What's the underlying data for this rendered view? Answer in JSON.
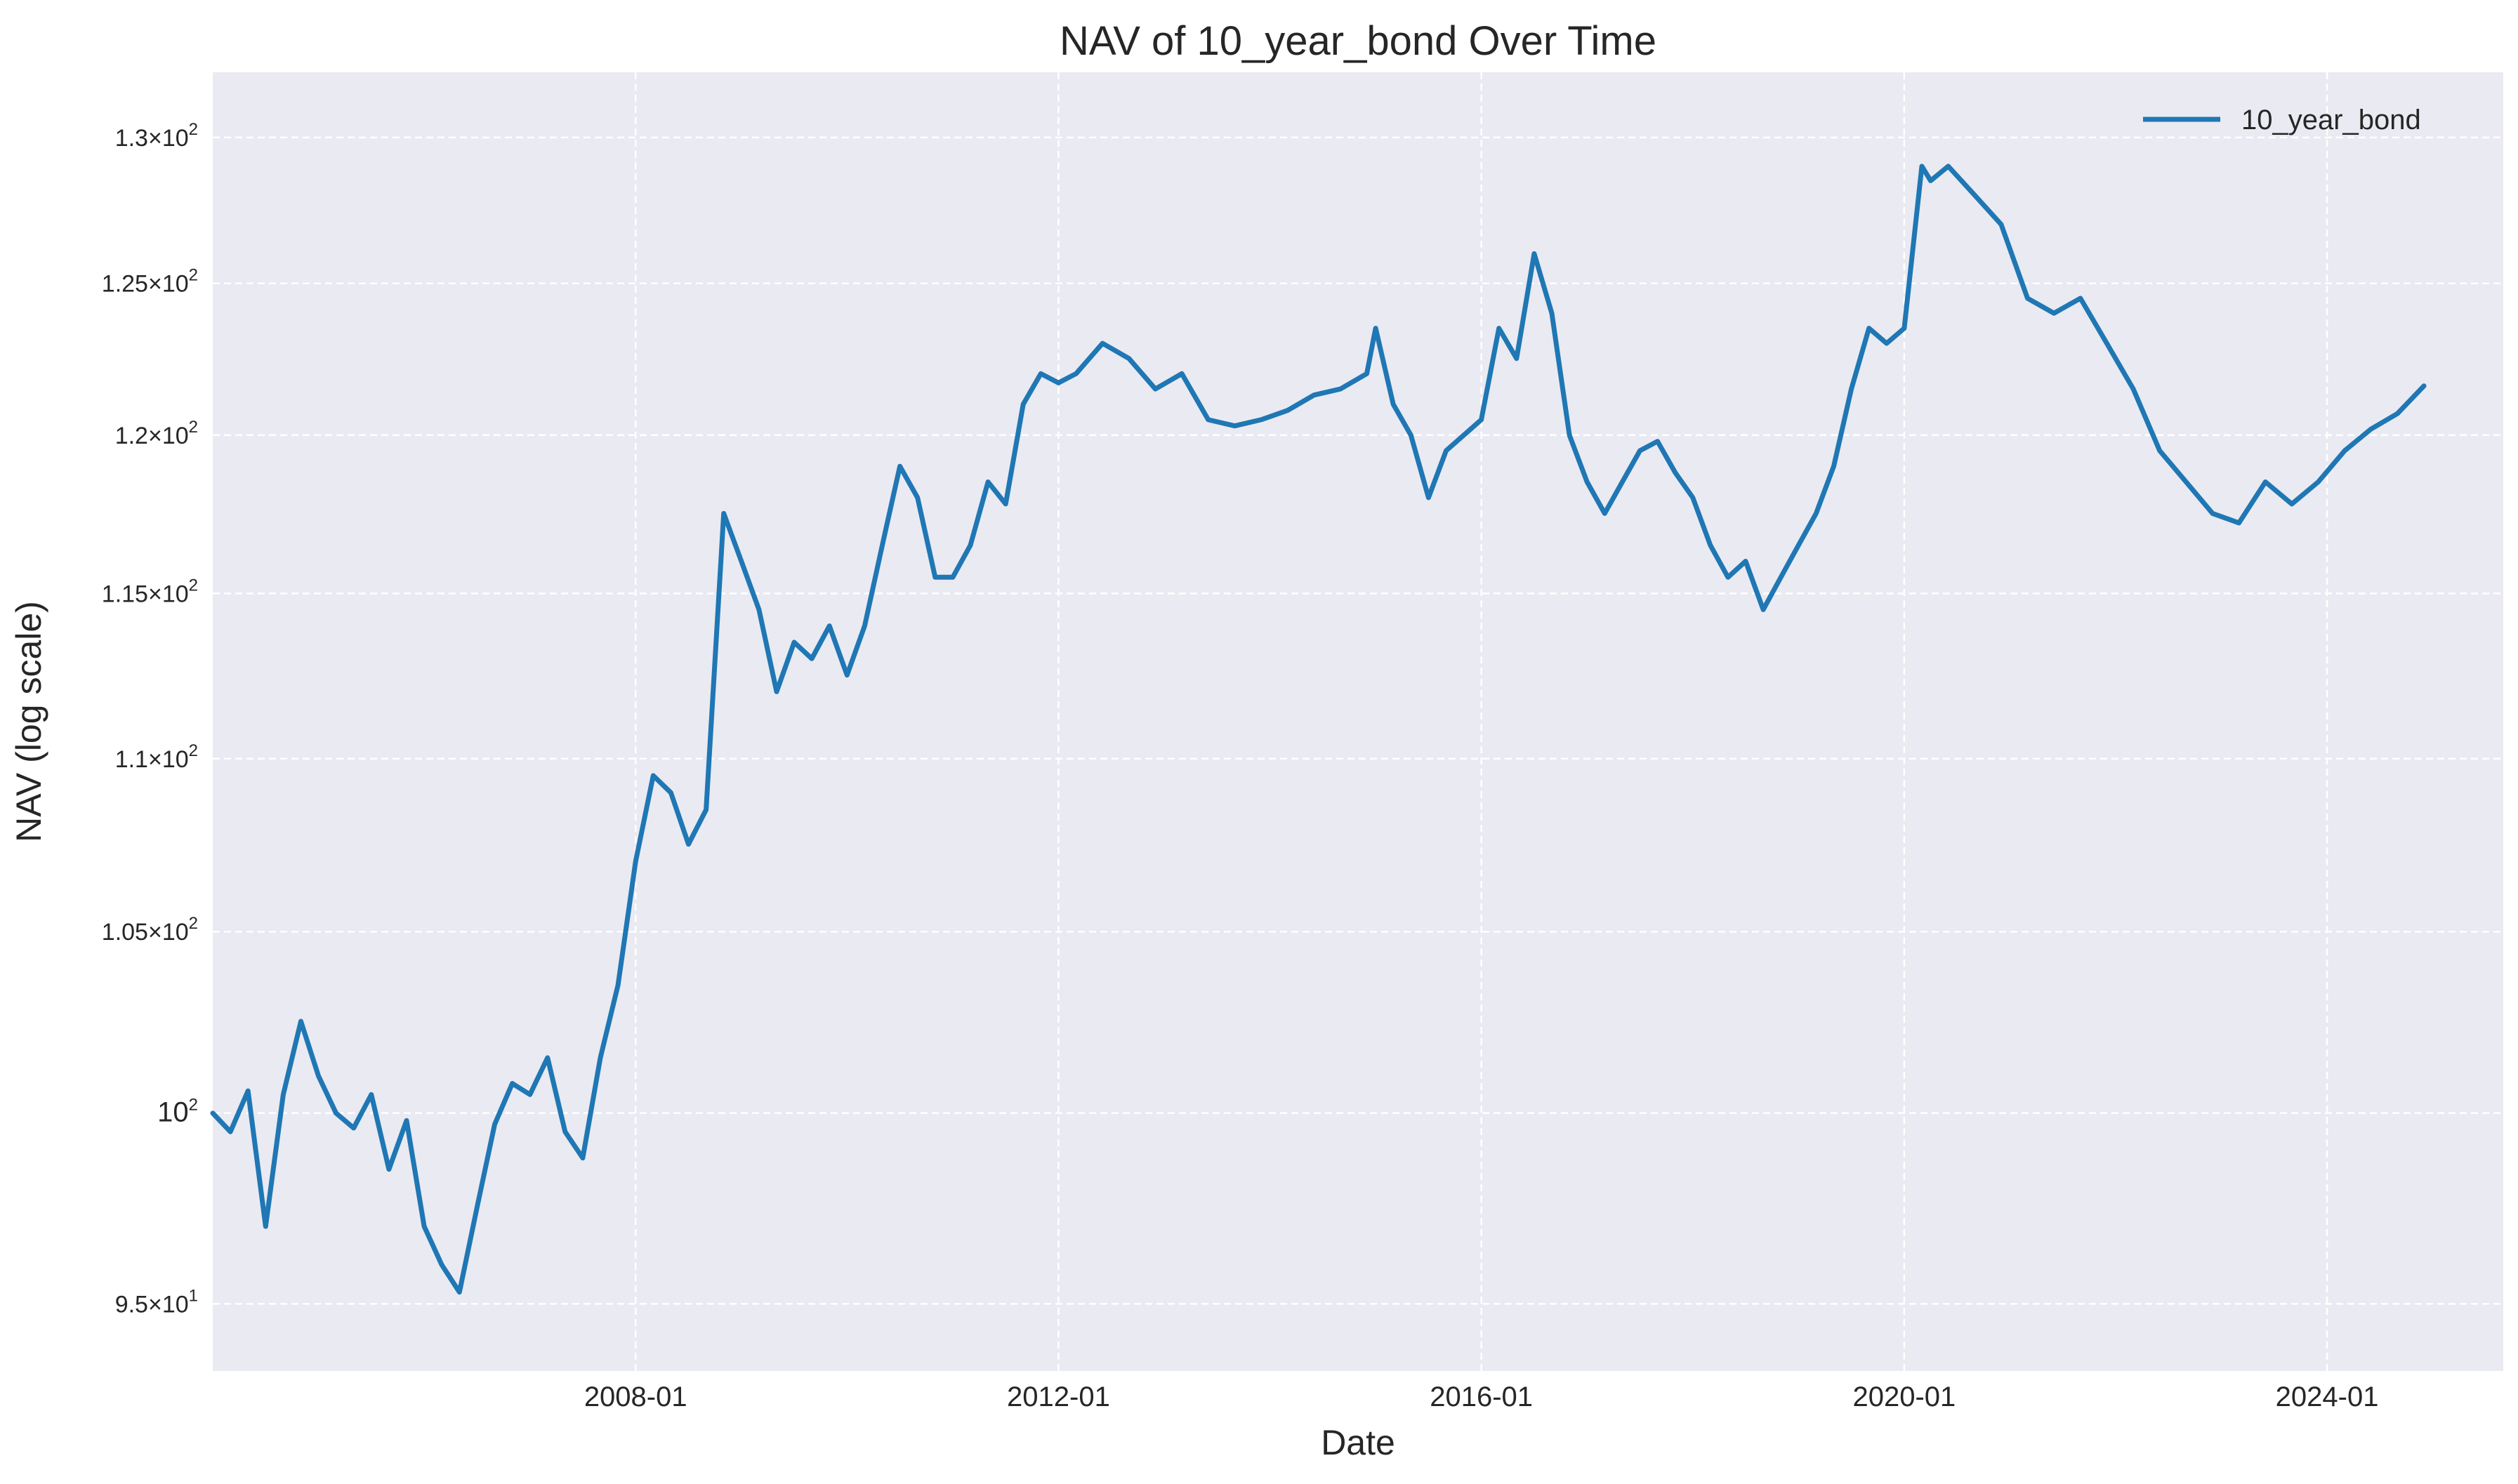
{
  "chart_data": {
    "type": "line",
    "title": "NAV of 10_year_bond Over Time",
    "xlabel": "Date",
    "ylabel": "NAV (log scale)",
    "y_scale": "log",
    "grid": true,
    "legend_position": "top-right",
    "line_color": "#1f77b4",
    "background_color": "#eaeaf2",
    "x_ticks": [
      "2008-01",
      "2012-01",
      "2016-01",
      "2020-01",
      "2024-01"
    ],
    "y_ticks": [
      {
        "value": 95,
        "mantissa": "9.5",
        "base": "10",
        "exp": "1"
      },
      {
        "value": 100,
        "mantissa": "",
        "base": "10",
        "exp": "2"
      },
      {
        "value": 105,
        "mantissa": "1.05",
        "base": "10",
        "exp": "2"
      },
      {
        "value": 110,
        "mantissa": "1.1",
        "base": "10",
        "exp": "2"
      },
      {
        "value": 115,
        "mantissa": "1.15",
        "base": "10",
        "exp": "2"
      },
      {
        "value": 120,
        "mantissa": "1.2",
        "base": "10",
        "exp": "2"
      },
      {
        "value": 125,
        "mantissa": "1.25",
        "base": "10",
        "exp": "2"
      },
      {
        "value": 130,
        "mantissa": "1.3",
        "base": "10",
        "exp": "2"
      }
    ],
    "x_range": [
      "2004-01",
      "2025-09"
    ],
    "y_range": [
      93.3,
      132.3
    ],
    "series": [
      {
        "name": "10_year_bond",
        "x": [
          "2004-01",
          "2004-03",
          "2004-05",
          "2004-07",
          "2004-09",
          "2004-11",
          "2005-01",
          "2005-03",
          "2005-05",
          "2005-07",
          "2005-09",
          "2005-11",
          "2006-01",
          "2006-03",
          "2006-05",
          "2006-07",
          "2006-09",
          "2006-11",
          "2007-01",
          "2007-03",
          "2007-05",
          "2007-07",
          "2007-09",
          "2007-11",
          "2008-01",
          "2008-03",
          "2008-05",
          "2008-07",
          "2008-09",
          "2008-11",
          "2009-01",
          "2009-03",
          "2009-05",
          "2009-07",
          "2009-09",
          "2009-11",
          "2010-01",
          "2010-03",
          "2010-05",
          "2010-07",
          "2010-09",
          "2010-11",
          "2011-01",
          "2011-03",
          "2011-05",
          "2011-07",
          "2011-09",
          "2011-11",
          "2012-01",
          "2012-03",
          "2012-06",
          "2012-09",
          "2012-12",
          "2013-03",
          "2013-06",
          "2013-09",
          "2013-12",
          "2014-03",
          "2014-06",
          "2014-09",
          "2014-12",
          "2015-01",
          "2015-03",
          "2015-05",
          "2015-07",
          "2015-09",
          "2015-11",
          "2016-01",
          "2016-03",
          "2016-05",
          "2016-07",
          "2016-09",
          "2016-11",
          "2017-01",
          "2017-03",
          "2017-05",
          "2017-07",
          "2017-09",
          "2017-11",
          "2018-01",
          "2018-03",
          "2018-05",
          "2018-07",
          "2018-09",
          "2018-11",
          "2019-01",
          "2019-03",
          "2019-05",
          "2019-07",
          "2019-09",
          "2019-11",
          "2020-01",
          "2020-03",
          "2020-04",
          "2020-06",
          "2020-09",
          "2020-12",
          "2021-03",
          "2021-06",
          "2021-09",
          "2021-12",
          "2022-03",
          "2022-06",
          "2022-09",
          "2022-12",
          "2023-03",
          "2023-06",
          "2023-09",
          "2023-12",
          "2024-03",
          "2024-06",
          "2024-09",
          "2024-12"
        ],
        "values": [
          100.0,
          99.5,
          100.6,
          97.0,
          100.5,
          102.5,
          101.0,
          100.0,
          99.6,
          100.5,
          98.5,
          99.8,
          97.0,
          96.0,
          95.3,
          97.5,
          99.7,
          100.8,
          100.5,
          101.5,
          99.5,
          98.8,
          101.5,
          103.5,
          107.0,
          109.5,
          109.0,
          107.5,
          108.5,
          117.5,
          116.0,
          114.5,
          112.0,
          113.5,
          113.0,
          114.0,
          112.5,
          114.0,
          116.5,
          119.0,
          118.0,
          115.5,
          115.5,
          116.5,
          118.5,
          117.8,
          121.0,
          122.0,
          121.7,
          122.0,
          123.0,
          122.5,
          121.5,
          122.0,
          120.5,
          120.3,
          120.5,
          120.8,
          121.3,
          121.5,
          122.0,
          123.5,
          121.0,
          120.0,
          118.0,
          119.5,
          120.0,
          120.5,
          123.5,
          122.5,
          126.0,
          124.0,
          120.0,
          118.5,
          117.5,
          118.5,
          119.5,
          119.8,
          118.8,
          118.0,
          116.5,
          115.5,
          116.0,
          114.5,
          115.5,
          116.5,
          117.5,
          119.0,
          121.5,
          123.5,
          123.0,
          123.5,
          129.0,
          128.5,
          129.0,
          128.0,
          127.0,
          124.5,
          124.0,
          124.5,
          123.0,
          121.5,
          119.5,
          118.5,
          117.5,
          117.2,
          118.5,
          117.8,
          118.5,
          119.5,
          120.2,
          120.7,
          121.6
        ]
      }
    ]
  }
}
